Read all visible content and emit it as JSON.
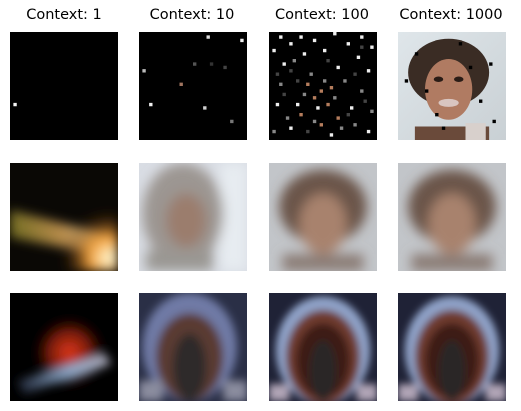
{
  "columns": [
    {
      "label": "Context: 1"
    },
    {
      "label": "Context: 10"
    },
    {
      "label": "Context: 100"
    },
    {
      "label": "Context: 1000"
    }
  ],
  "rows": [
    {
      "tiles": [
        {
          "content": "context-pixels",
          "count": 1
        },
        {
          "content": "context-pixels",
          "count": 10
        },
        {
          "content": "context-pixels",
          "count": 100
        },
        {
          "content": "context-pixels",
          "count": 1000
        }
      ]
    },
    {
      "tiles": [
        {
          "content": "blurry-color-streak"
        },
        {
          "content": "blurry-face-light-hair"
        },
        {
          "content": "blurry-face-dark-hair"
        },
        {
          "content": "blurry-face-dark-hair"
        }
      ]
    },
    {
      "tiles": [
        {
          "content": "dark-red-streak"
        },
        {
          "content": "dark-arch-pattern"
        },
        {
          "content": "dark-arch-pattern"
        },
        {
          "content": "dark-arch-pattern"
        }
      ]
    }
  ],
  "colors": {
    "background": "#ffffff",
    "tile_dark": "#000000"
  }
}
